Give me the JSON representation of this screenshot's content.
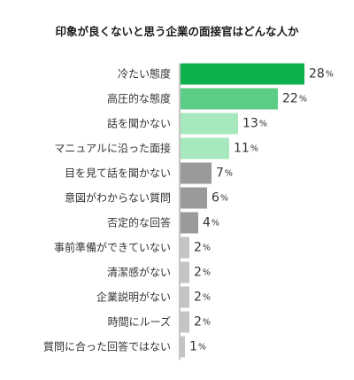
{
  "chart_data": {
    "type": "bar",
    "orientation": "horizontal",
    "title": "印象が良くないと思う企業の面接官はどんな人か",
    "categories": [
      "冷たい態度",
      "高圧的な態度",
      "話を聞かない",
      "マニュアルに沿った面接",
      "目を見て話を聞かない",
      "意図がわからない質問",
      "否定的な回答",
      "事前準備ができていない",
      "清潔感がない",
      "企業説明がない",
      "時間にルーズ",
      "質問に合った回答ではない"
    ],
    "values": [
      28,
      22,
      13,
      11,
      7,
      6,
      4,
      2,
      2,
      2,
      2,
      1
    ],
    "unit": "%",
    "xlim": [
      0,
      30
    ],
    "grid": false,
    "legend": "none",
    "colors": [
      "#0db14b",
      "#5ccd85",
      "#a8e8bf",
      "#a8e8bf",
      "#9a9a9a",
      "#9a9a9a",
      "#9a9a9a",
      "#c4c4c4",
      "#c4c4c4",
      "#c4c4c4",
      "#c4c4c4",
      "#c4c4c4"
    ],
    "axis_color": "#888888"
  }
}
